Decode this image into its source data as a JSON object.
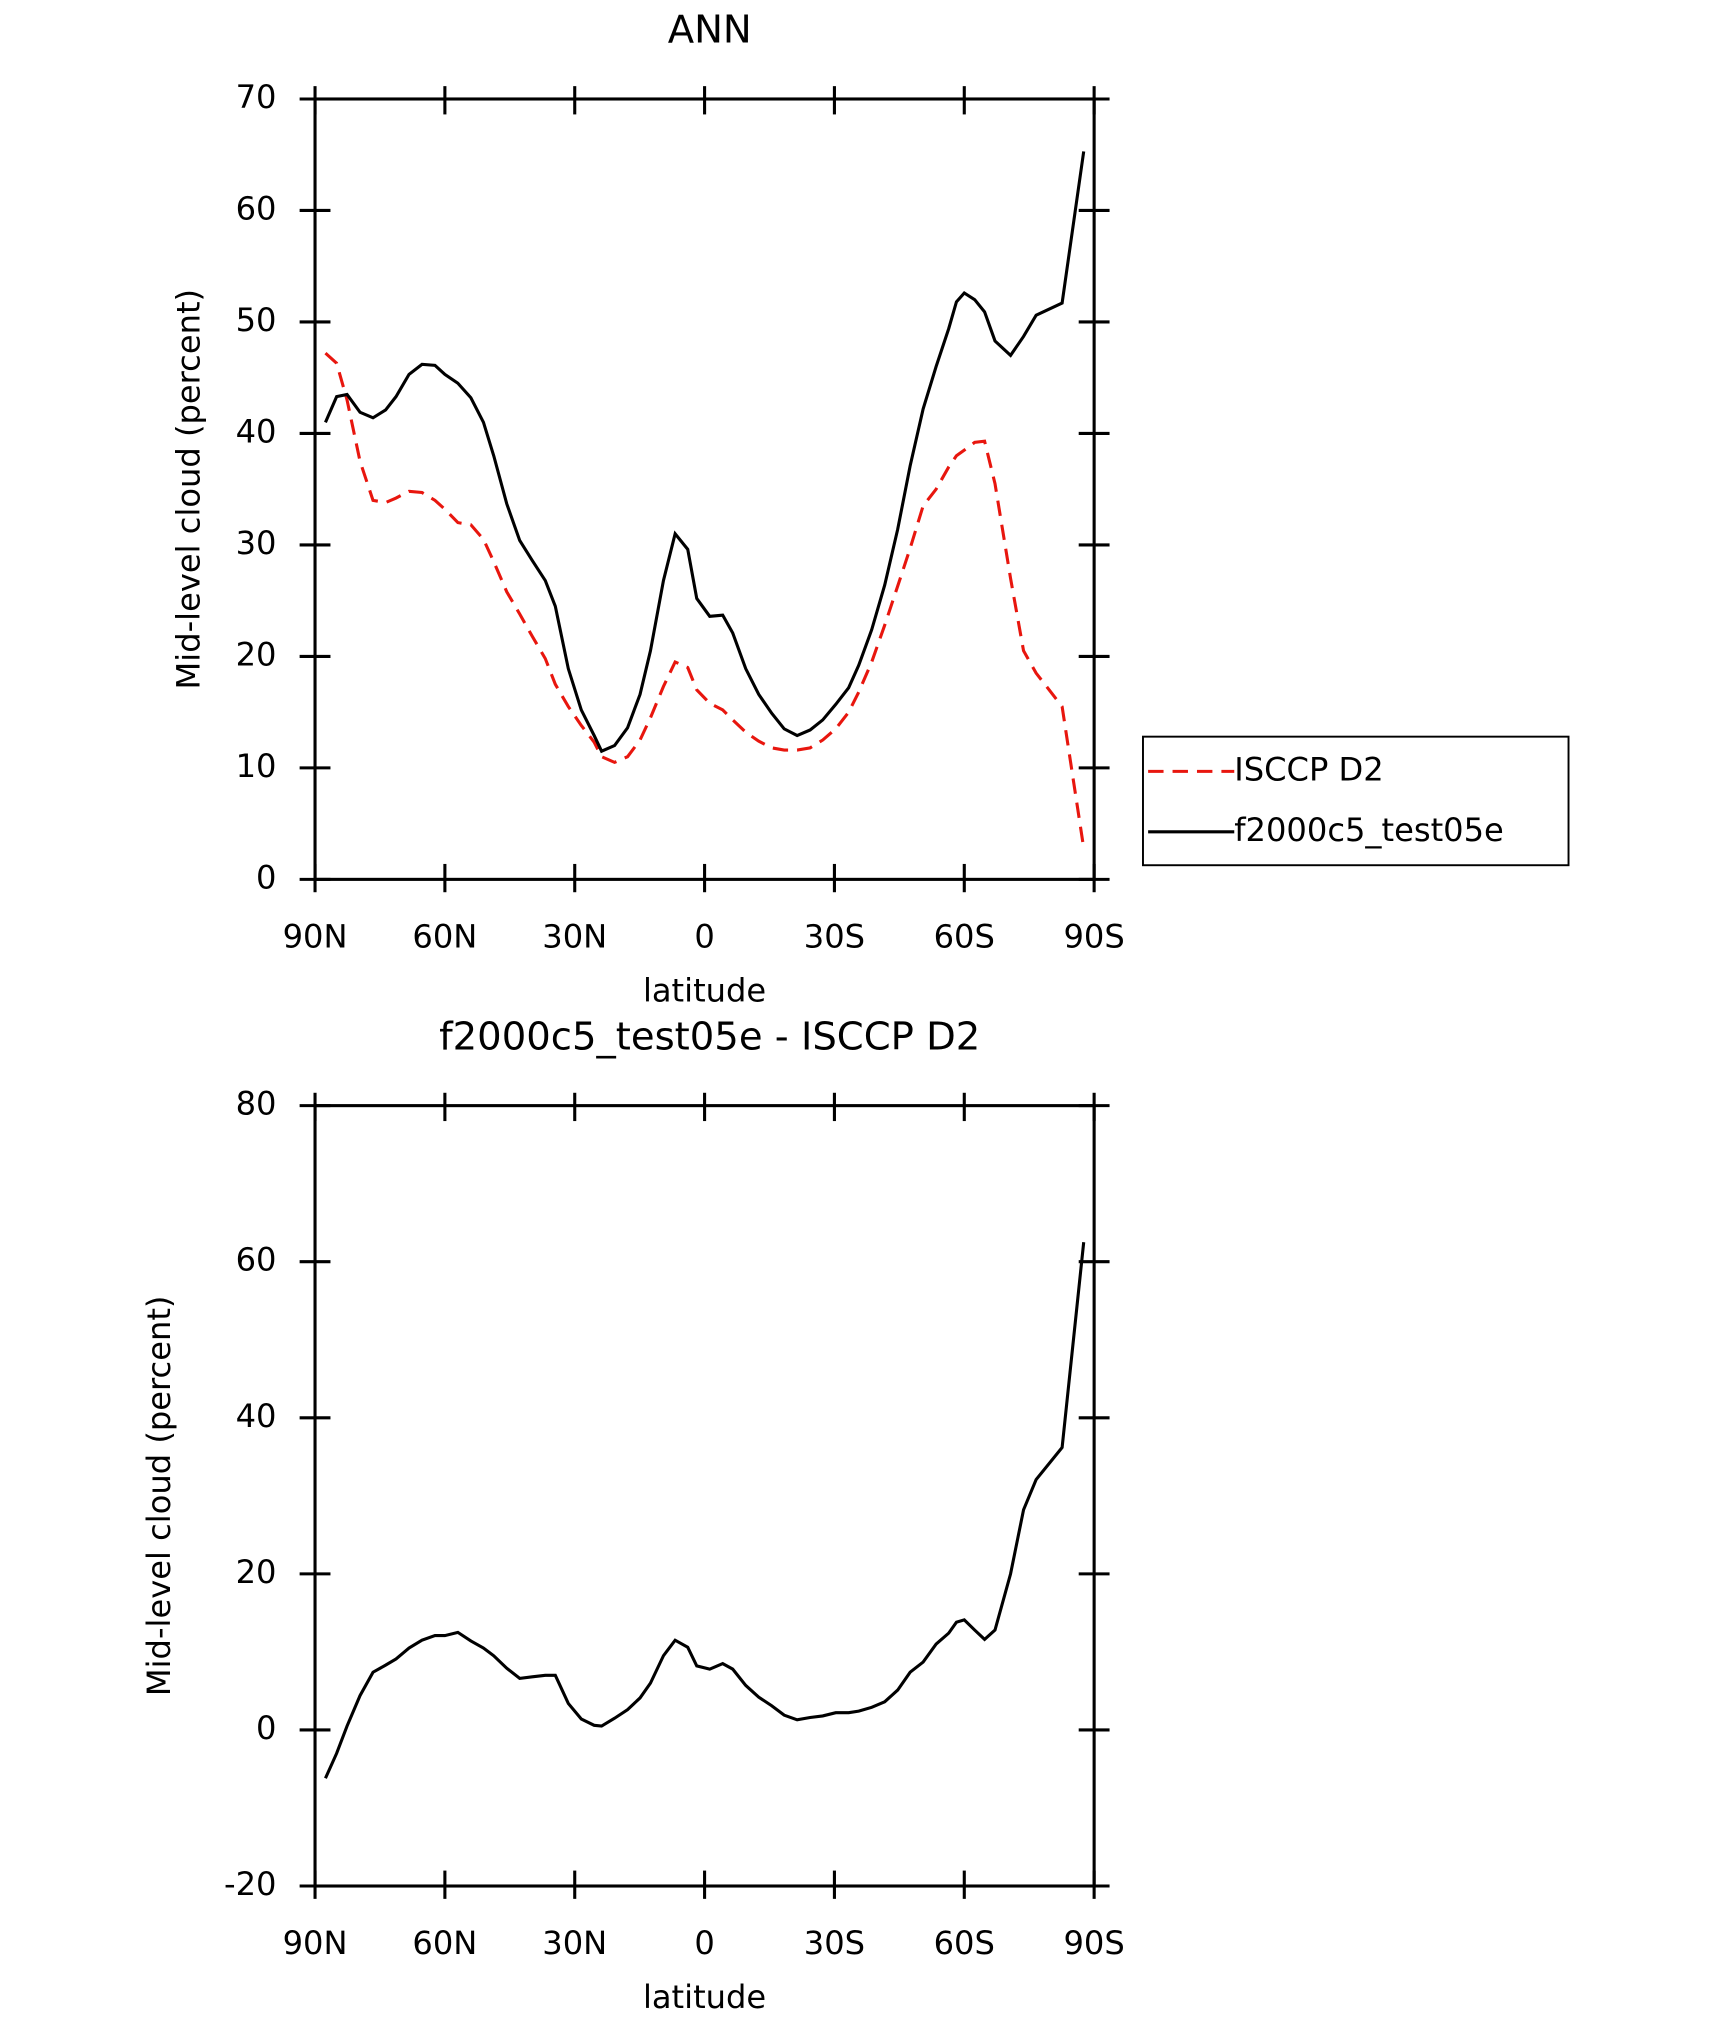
{
  "chart_data": [
    {
      "type": "line",
      "title": "ANN",
      "x_label": "latitude",
      "y_label": "Mid-level cloud (percent)",
      "x": [
        87.6,
        85.0,
        82.6,
        79.6,
        76.6,
        73.7,
        71.3,
        68.3,
        65.3,
        62.3,
        60.0,
        57.0,
        54.0,
        51.1,
        48.7,
        45.7,
        42.7,
        39.8,
        36.8,
        34.5,
        31.5,
        28.5,
        25.5,
        23.8,
        20.8,
        17.8,
        14.9,
        12.5,
        9.5,
        6.8,
        3.9,
        1.8,
        -1.2,
        -4.2,
        -6.5,
        -9.5,
        -12.5,
        -15.5,
        -18.4,
        -21.4,
        -24.4,
        -27.3,
        -30.3,
        -33.3,
        -35.6,
        -38.6,
        -41.6,
        -44.6,
        -47.5,
        -50.5,
        -53.5,
        -56.4,
        -58.2,
        -60.0,
        -62.4,
        -64.7,
        -67.1,
        -70.7,
        -73.7,
        -76.6,
        -82.6,
        -87.6
      ],
      "series": [
        {
          "name": "ISCCP D2",
          "color": "#e8160e",
          "style": "dashed",
          "values": [
            47.2,
            46.3,
            43,
            37.5,
            34,
            33.8,
            34.2,
            34.8,
            34.7,
            34,
            33.2,
            32,
            31.8,
            30.5,
            28.5,
            25.8,
            23.8,
            21.8,
            19.8,
            17.5,
            15.5,
            13.8,
            12.3,
            11,
            10.5,
            11,
            12.5,
            14.5,
            17.3,
            19.5,
            19,
            17,
            15.8,
            15.2,
            14.3,
            13.2,
            12.4,
            11.8,
            11.6,
            11.6,
            11.8,
            12.5,
            13.5,
            15,
            16.8,
            19.5,
            22.8,
            26.3,
            29.7,
            33.5,
            35,
            37,
            38,
            38.5,
            39.2,
            39.3,
            35.5,
            27,
            20.5,
            18.5,
            15.5,
            2.8
          ]
        },
        {
          "name": "f2000c5_test05e",
          "color": "#000000",
          "style": "solid",
          "values": [
            41,
            43.3,
            43.5,
            41.9,
            41.4,
            42.1,
            43.3,
            45.3,
            46.2,
            46.1,
            45.3,
            44.5,
            43.2,
            41,
            38,
            33.7,
            30.4,
            28.6,
            26.8,
            24.5,
            18.9,
            15.2,
            12.9,
            11.5,
            12,
            13.6,
            16.6,
            20.5,
            26.8,
            31,
            29.6,
            25.2,
            23.6,
            23.7,
            22.1,
            18.9,
            16.6,
            14.9,
            13.5,
            12.9,
            13.4,
            14.3,
            15.7,
            17.2,
            19.2,
            22.4,
            26.4,
            31.4,
            37.1,
            42.2,
            46,
            49.4,
            51.8,
            52.6,
            52,
            50.9,
            48.3,
            47,
            48.7,
            50.6,
            51.7,
            65.3
          ]
        }
      ],
      "xlim": [
        90,
        -90
      ],
      "xticks": [
        {
          "value": 90,
          "label": "90N"
        },
        {
          "value": 60,
          "label": "60N"
        },
        {
          "value": 30,
          "label": "30N"
        },
        0,
        {
          "value": -30,
          "label": "30S"
        },
        {
          "value": -60,
          "label": "60S"
        },
        {
          "value": -90,
          "label": "90S"
        }
      ],
      "ylim": [
        0,
        70
      ],
      "yticks": [
        0,
        10,
        20,
        30,
        40,
        50,
        60,
        70
      ],
      "legend": "right"
    },
    {
      "type": "line",
      "title": "f2000c5_test05e - ISCCP D2",
      "x_label": "latitude",
      "y_label": "Mid-level cloud (percent)",
      "x": [
        87.6,
        85.0,
        82.6,
        79.6,
        76.6,
        73.7,
        71.3,
        68.3,
        65.3,
        62.3,
        60.0,
        57.0,
        54.0,
        51.1,
        48.7,
        45.7,
        42.7,
        39.8,
        36.8,
        34.5,
        31.5,
        28.5,
        25.5,
        23.8,
        20.8,
        17.8,
        14.9,
        12.5,
        9.5,
        6.8,
        3.9,
        1.8,
        -1.2,
        -4.2,
        -6.5,
        -9.5,
        -12.5,
        -15.5,
        -18.4,
        -21.4,
        -24.4,
        -27.3,
        -30.3,
        -33.3,
        -35.6,
        -38.6,
        -41.6,
        -44.6,
        -47.5,
        -50.5,
        -53.5,
        -56.4,
        -58.2,
        -60.0,
        -62.4,
        -64.7,
        -67.1,
        -70.7,
        -73.7,
        -76.6,
        -82.6,
        -87.6
      ],
      "series": [
        {
          "color": "#000000",
          "style": "solid",
          "values": [
            -6.2,
            -3,
            0.5,
            4.4,
            7.4,
            8.3,
            9.1,
            10.5,
            11.5,
            12.1,
            12.1,
            12.5,
            11.4,
            10.5,
            9.5,
            7.9,
            6.6,
            6.8,
            7,
            7,
            3.4,
            1.4,
            0.6,
            0.5,
            1.5,
            2.6,
            4.1,
            6,
            9.5,
            11.5,
            10.6,
            8.2,
            7.8,
            8.5,
            7.8,
            5.7,
            4.2,
            3.1,
            1.9,
            1.3,
            1.6,
            1.8,
            2.2,
            2.2,
            2.4,
            2.9,
            3.6,
            5.1,
            7.4,
            8.7,
            11,
            12.4,
            13.8,
            14.1,
            12.8,
            11.6,
            12.8,
            20,
            28.2,
            32.1,
            36.2,
            62.5
          ]
        }
      ],
      "xlim": [
        90,
        -90
      ],
      "xticks": [
        {
          "value": 90,
          "label": "90N"
        },
        {
          "value": 60,
          "label": "60N"
        },
        {
          "value": 30,
          "label": "30N"
        },
        0,
        {
          "value": -30,
          "label": "30S"
        },
        {
          "value": -60,
          "label": "60S"
        },
        {
          "value": -90,
          "label": "90S"
        }
      ],
      "ylim": [
        -20,
        80
      ],
      "yticks": [
        -20,
        0,
        20,
        40,
        60,
        80
      ]
    }
  ]
}
